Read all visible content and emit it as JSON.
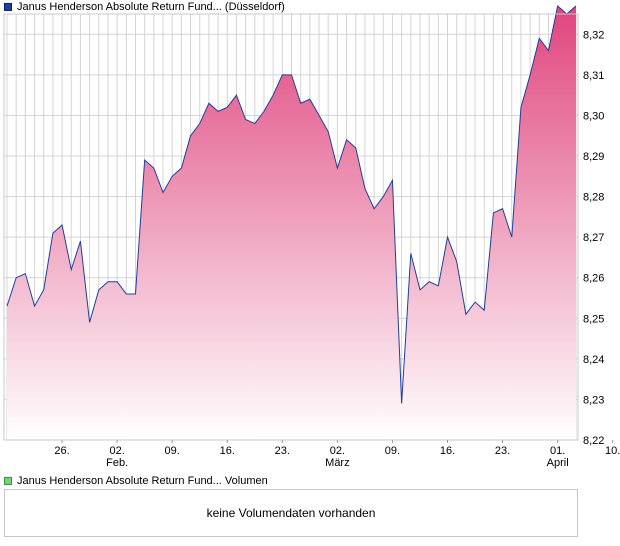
{
  "legend": {
    "price_label": "Janus Henderson Absolute Return Fund... (Düsseldorf)",
    "volume_label": "Janus Henderson Absolute Return Fund... Volumen"
  },
  "volume_panel": {
    "message": "keine Volumendaten vorhanden"
  },
  "colors": {
    "line": "#1f3f9e",
    "fill_top": "#e0457e",
    "fill_bottom": "#ffffff",
    "grid": "#d4d4d4",
    "border": "#c8c8c8"
  },
  "chart_data": {
    "type": "area",
    "title": "",
    "xlabel": "",
    "ylabel": "",
    "ylim": [
      8.22,
      8.325
    ],
    "grid": true,
    "y_ticks": [
      "8,22",
      "8,23",
      "8,24",
      "8,25",
      "8,26",
      "8,27",
      "8,28",
      "8,29",
      "8,30",
      "8,31",
      "8,32"
    ],
    "x_ticks": [
      {
        "day": "26.",
        "month": ""
      },
      {
        "day": "02.",
        "month": "Feb."
      },
      {
        "day": "09.",
        "month": ""
      },
      {
        "day": "16.",
        "month": ""
      },
      {
        "day": "23.",
        "month": ""
      },
      {
        "day": "02.",
        "month": "März"
      },
      {
        "day": "09.",
        "month": ""
      },
      {
        "day": "16.",
        "month": ""
      },
      {
        "day": "23.",
        "month": ""
      },
      {
        "day": "01.",
        "month": "April"
      },
      {
        "day": "10.",
        "month": ""
      }
    ],
    "x_tick_index": [
      6,
      12,
      18,
      24,
      30,
      36,
      42,
      48,
      54,
      60,
      66
    ],
    "values": [
      8.253,
      8.26,
      8.261,
      8.253,
      8.257,
      8.271,
      8.273,
      8.262,
      8.269,
      8.249,
      8.257,
      8.259,
      8.259,
      8.256,
      8.256,
      8.289,
      8.287,
      8.281,
      8.285,
      8.287,
      8.295,
      8.298,
      8.303,
      8.301,
      8.302,
      8.305,
      8.299,
      8.298,
      8.301,
      8.305,
      8.31,
      8.31,
      8.303,
      8.304,
      8.3,
      8.296,
      8.287,
      8.294,
      8.292,
      8.282,
      8.277,
      8.28,
      8.284,
      8.229,
      8.266,
      8.257,
      8.259,
      8.258,
      8.27,
      8.264,
      8.251,
      8.254,
      8.252,
      8.276,
      8.277,
      8.27,
      8.302,
      8.31,
      8.319,
      8.316,
      8.327,
      8.325,
      8.327
    ]
  }
}
